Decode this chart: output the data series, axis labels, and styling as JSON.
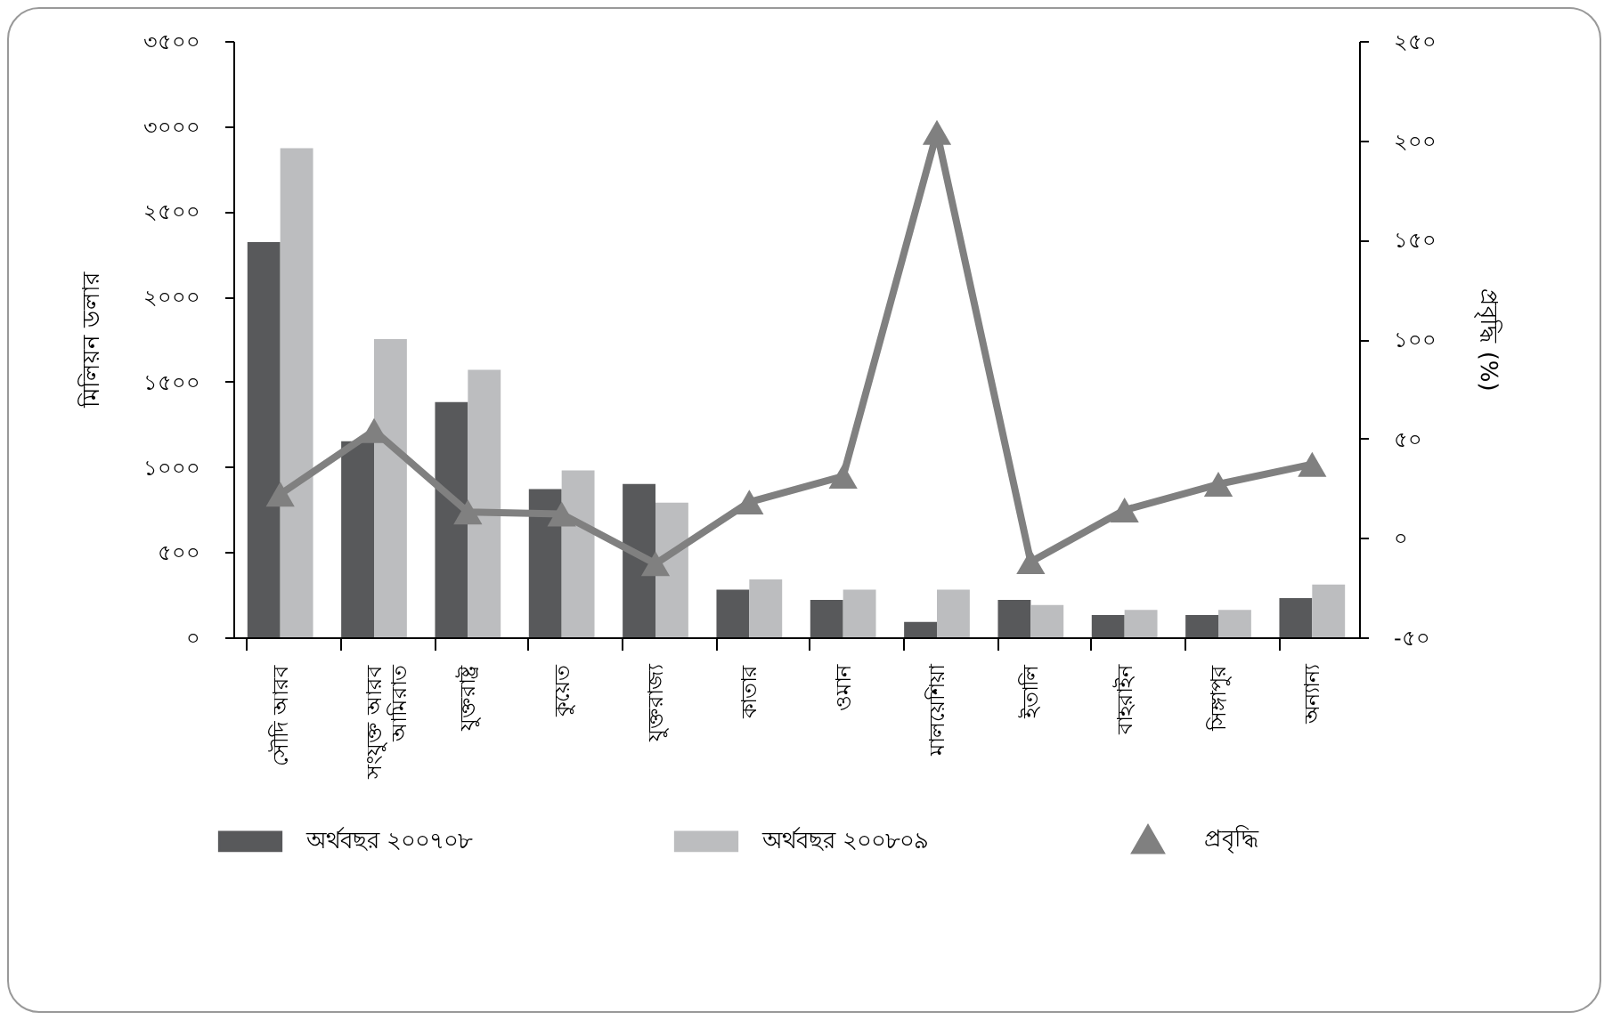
{
  "chart_data": {
    "type": "bar",
    "ylabel": "মিলিয়ন ডলার",
    "y2label": "প্রবৃদ্ধি (%)",
    "categories": [
      "সৌদি আরব",
      "সংযুক্ত আরব আমিরাত",
      "যুক্তরাষ্ট্র",
      "কুয়েত",
      "যুক্তরাজ্য",
      "কাতার",
      "ওমান",
      "মালয়েশিয়া",
      "ইতালি",
      "বাহরাইন",
      "সিঙ্গাপুর",
      "অন্যান্য"
    ],
    "series": [
      {
        "name": "অর্থবছর ২০০৭০৮",
        "color": "#58595b",
        "values": [
          2320,
          1150,
          1380,
          870,
          900,
          280,
          220,
          90,
          220,
          130,
          130,
          230
        ]
      },
      {
        "name": "অর্থবছর ২০০৮০৯",
        "color": "#bcbdbf",
        "values": [
          2870,
          1750,
          1570,
          980,
          790,
          340,
          280,
          280,
          190,
          160,
          160,
          310
        ]
      },
      {
        "name": "প্রবৃদ্ধি",
        "color": "#808080",
        "type": "line",
        "axis": "y2",
        "marker": "triangle",
        "values": [
          22,
          54,
          13,
          12,
          -13,
          18,
          31,
          204,
          -12,
          14,
          27,
          37
        ]
      }
    ],
    "ylim": [
      0,
      3500
    ],
    "yticks": [
      {
        "value": 0,
        "label": "০"
      },
      {
        "value": 500,
        "label": "৫০০"
      },
      {
        "value": 1000,
        "label": "১০০০"
      },
      {
        "value": 1500,
        "label": "১৫০০"
      },
      {
        "value": 2000,
        "label": "২০০০"
      },
      {
        "value": 2500,
        "label": "২৫০০"
      },
      {
        "value": 3000,
        "label": "৩০০০"
      },
      {
        "value": 3500,
        "label": "৩৫০০"
      }
    ],
    "y2lim": [
      -50,
      250
    ],
    "y2ticks": [
      {
        "value": -50,
        "label": "-৫০"
      },
      {
        "value": 0,
        "label": "০"
      },
      {
        "value": 50,
        "label": "৫০"
      },
      {
        "value": 100,
        "label": "১০০"
      },
      {
        "value": 150,
        "label": "১৫০"
      },
      {
        "value": 200,
        "label": "২০০"
      },
      {
        "value": 250,
        "label": "২৫০"
      }
    ],
    "grid": false,
    "legend": "bottom"
  }
}
